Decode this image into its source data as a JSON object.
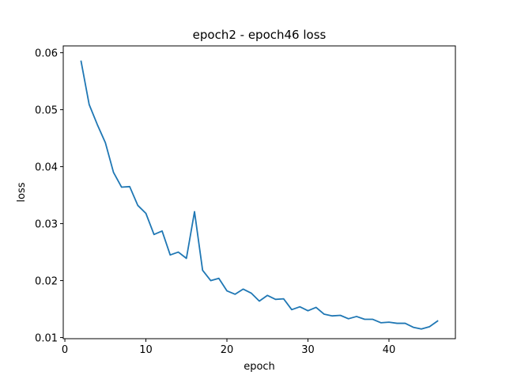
{
  "chart_data": {
    "type": "line",
    "title": "epoch2 - epoch46 loss",
    "xlabel": "epoch",
    "ylabel": "loss",
    "xlim": [
      -0.2,
      48.2
    ],
    "ylim": [
      0.0098,
      0.0612
    ],
    "xticks": [
      0,
      10,
      20,
      30,
      40
    ],
    "yticks": [
      0.01,
      0.02,
      0.03,
      0.04,
      0.05,
      0.06
    ],
    "ytick_labels": [
      "0.01",
      "0.02",
      "0.03",
      "0.04",
      "0.05",
      "0.06"
    ],
    "grid": false,
    "legend": "none",
    "series": [
      {
        "color": "#1f77b4",
        "x": [
          2,
          3,
          4,
          5,
          6,
          7,
          8,
          9,
          10,
          11,
          12,
          13,
          14,
          15,
          16,
          17,
          18,
          19,
          20,
          21,
          22,
          23,
          24,
          25,
          26,
          27,
          28,
          29,
          30,
          31,
          32,
          33,
          34,
          35,
          36,
          37,
          38,
          39,
          40,
          41,
          42,
          43,
          44,
          45,
          46
        ],
        "y": [
          0.0585,
          0.0509,
          0.0474,
          0.0442,
          0.039,
          0.0364,
          0.0365,
          0.0332,
          0.0318,
          0.0281,
          0.0287,
          0.0245,
          0.025,
          0.0239,
          0.0321,
          0.0218,
          0.02,
          0.0204,
          0.0182,
          0.0176,
          0.0185,
          0.0178,
          0.0164,
          0.0174,
          0.0167,
          0.0168,
          0.0149,
          0.0154,
          0.0147,
          0.0153,
          0.0141,
          0.0138,
          0.0139,
          0.0133,
          0.0137,
          0.0132,
          0.0132,
          0.0126,
          0.0127,
          0.0125,
          0.0125,
          0.0118,
          0.0115,
          0.0119,
          0.0129
        ]
      }
    ]
  }
}
